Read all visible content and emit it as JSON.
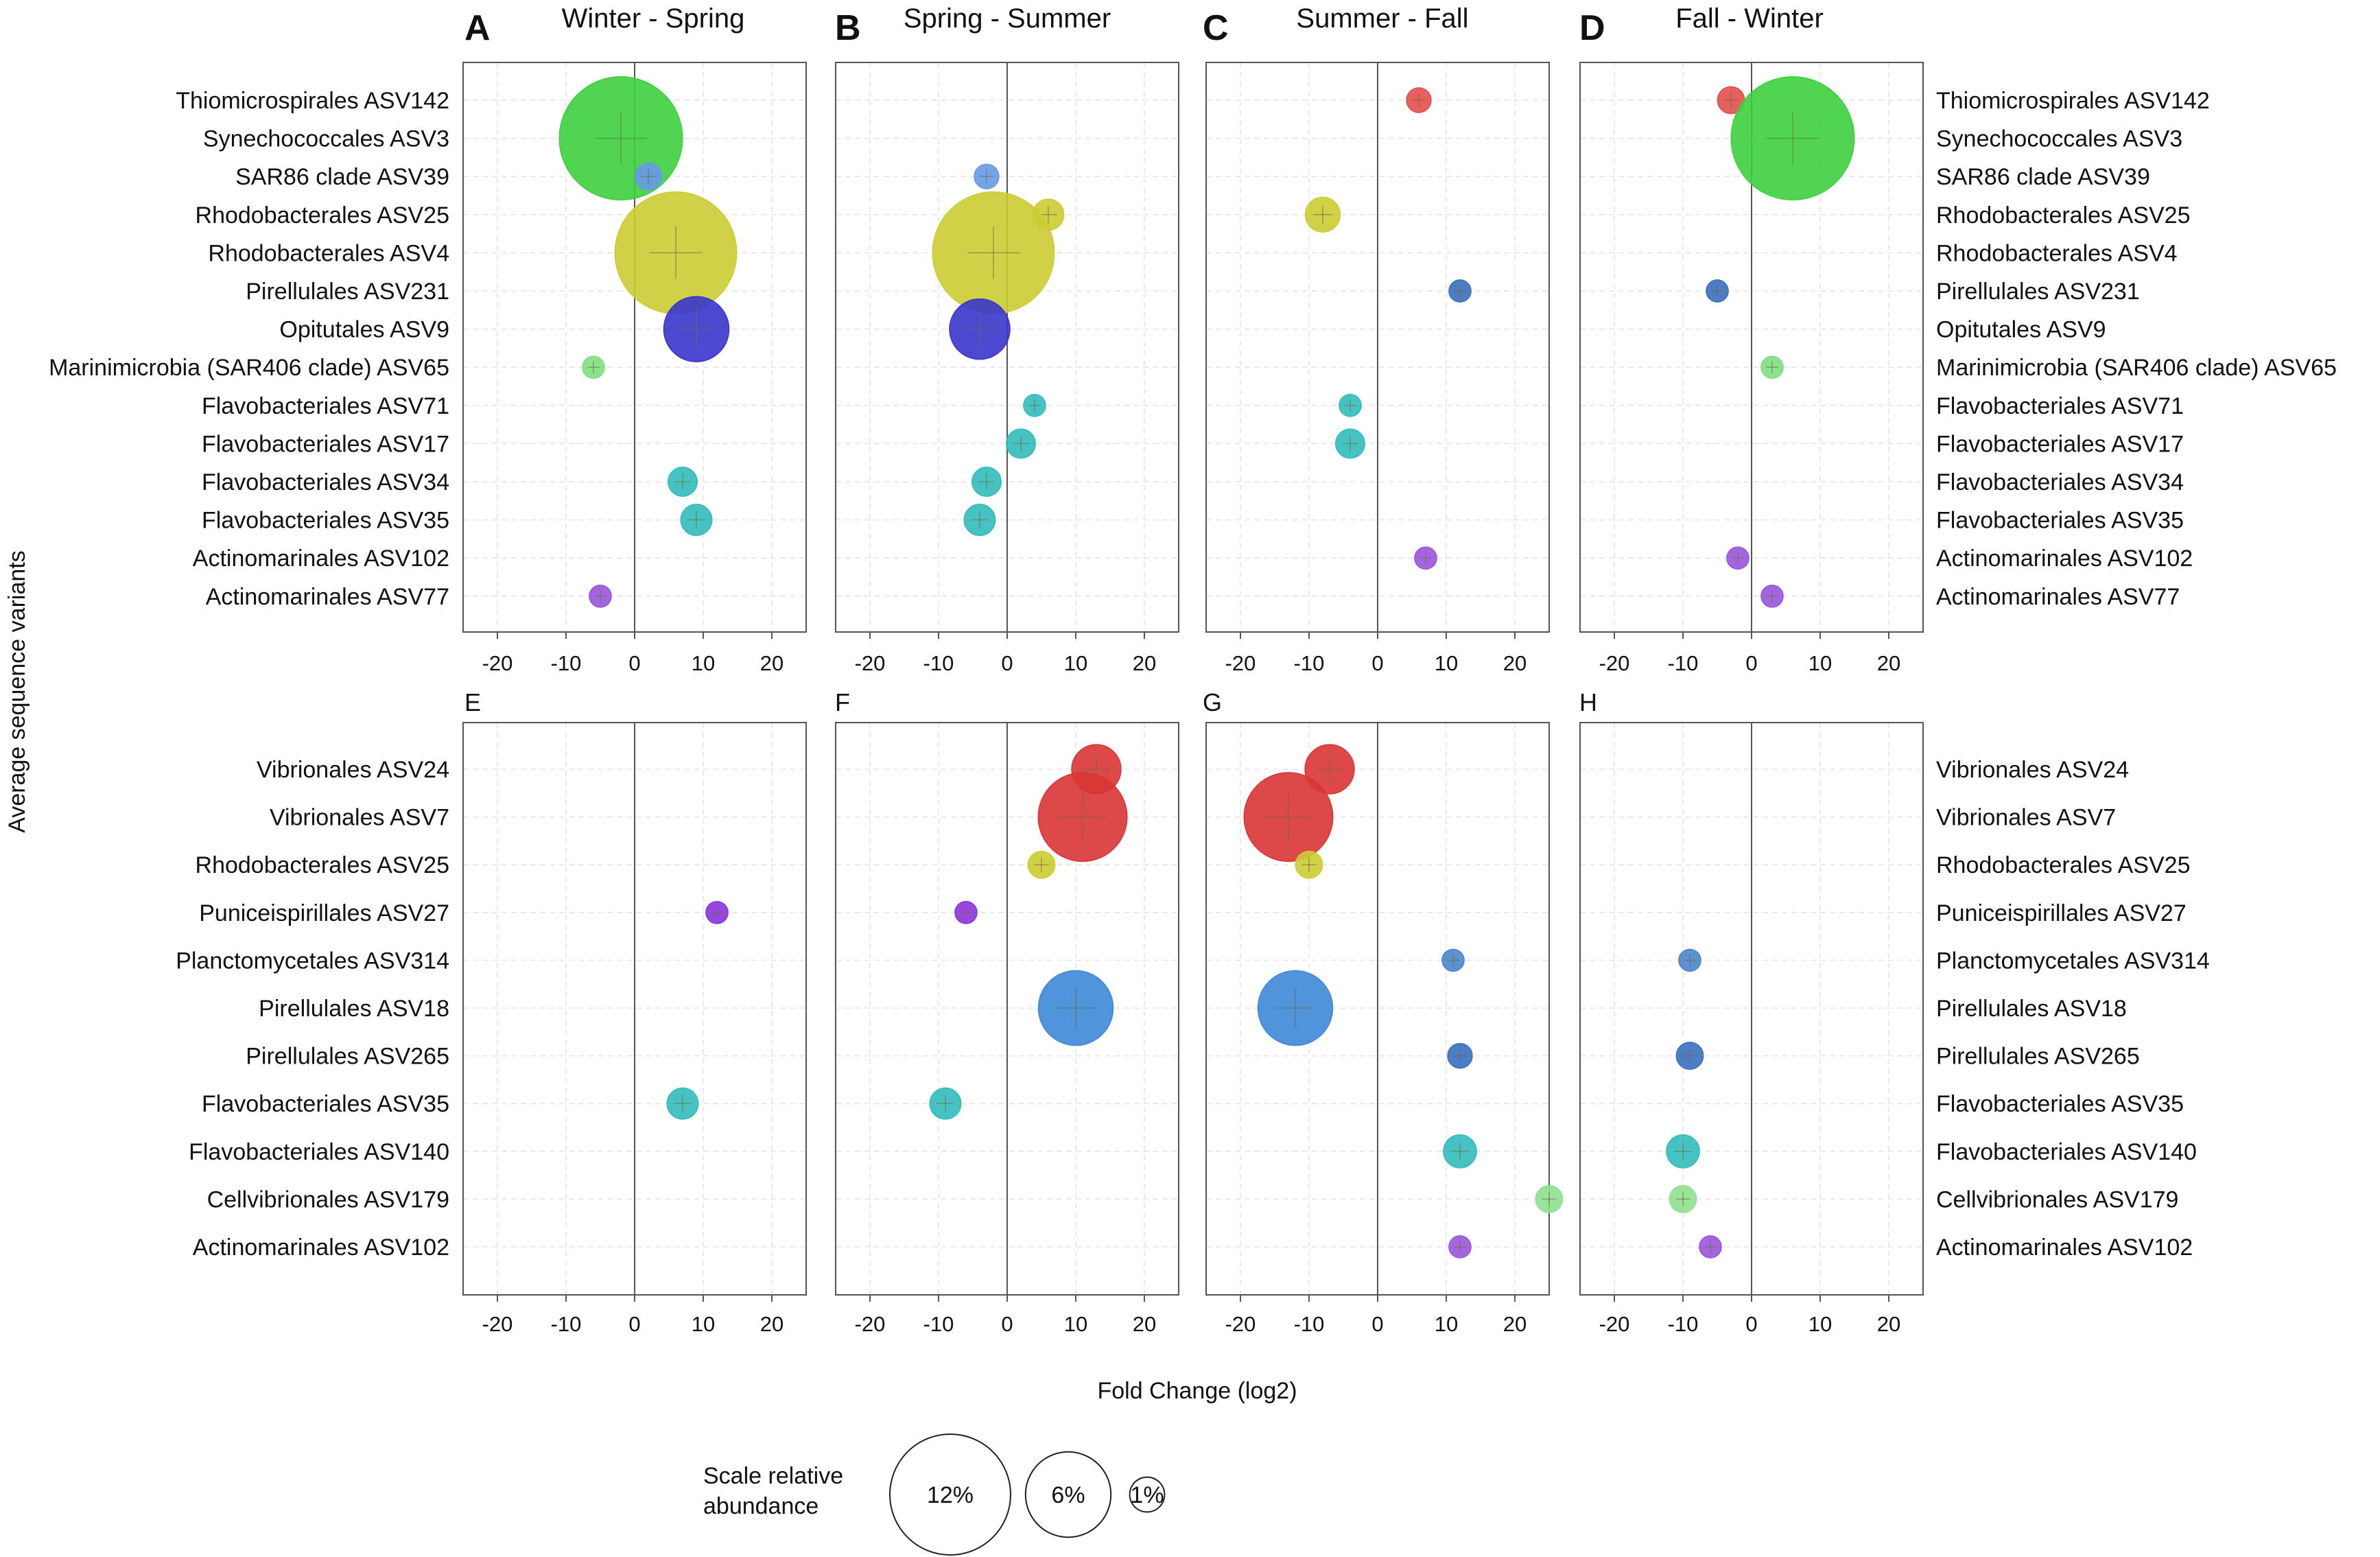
{
  "chart_data": {
    "type": "scatter",
    "subtype": "bubble",
    "y_axis_title": "Average sequence variants",
    "x_axis_title": "Fold Change (log2)",
    "xlim": [
      -25,
      25
    ],
    "x_ticks": [
      -20,
      -10,
      0,
      10,
      20
    ],
    "grid": true,
    "colors": {
      "Thiomicrospirales": "#e34f4f",
      "Synechococcales": "#3ecf3e",
      "SAR86 clade": "#6699e6",
      "Rhodobacterales": "#cccc33",
      "Pirellulales": "#3a6fbf",
      "Opitutales": "#3a35cc",
      "Marinimicrobia (SAR406 clade)": "#7fdf7f",
      "Flavobacteriales": "#33bbbb",
      "Actinomarinales": "#9955dd",
      "Vibrionales": "#d93535",
      "Puniceispirillales": "#8a33dd",
      "Planctomycetales": "#4a86cc",
      "Cellvibrionales": "#8fe08f",
      "Pirellulales ASV18": "#3d88d8"
    },
    "rows": [
      {
        "categories": [
          "Thiomicrospirales ASV142",
          "Synechococcales ASV3",
          "SAR86 clade ASV39",
          "Rhodobacterales ASV25",
          "Rhodobacterales ASV4",
          "Pirellulales ASV231",
          "Opitutales ASV9",
          "Marinimicrobia (SAR406 clade) ASV65",
          "Flavobacteriales ASV71",
          "Flavobacteriales ASV17",
          "Flavobacteriales ASV34",
          "Flavobacteriales ASV35",
          "Actinomarinales ASV102",
          "Actinomarinales ASV77"
        ],
        "panels": [
          {
            "letter": "A",
            "title": "Winter - Spring",
            "points": [
              {
                "category": "Synechococcales ASV3",
                "x": -2,
                "abundance": 12.5,
                "color": "#3ecf3e"
              },
              {
                "category": "SAR86 clade ASV39",
                "x": 2,
                "abundance": 0.6,
                "color": "#6699e6"
              },
              {
                "category": "Rhodobacterales ASV4",
                "x": 6,
                "abundance": 12.2,
                "color": "#cccc33"
              },
              {
                "category": "Opitutales ASV9",
                "x": 9,
                "abundance": 3.5,
                "color": "#3a35cc"
              },
              {
                "category": "Marinimicrobia (SAR406 clade) ASV65",
                "x": -6,
                "abundance": 0.4,
                "color": "#7fdf7f"
              },
              {
                "category": "Flavobacteriales ASV34",
                "x": 7,
                "abundance": 0.7,
                "color": "#33bbbb"
              },
              {
                "category": "Flavobacteriales ASV35",
                "x": 9,
                "abundance": 0.8,
                "color": "#33bbbb"
              },
              {
                "category": "Actinomarinales ASV77",
                "x": -5,
                "abundance": 0.4,
                "color": "#9955dd"
              }
            ]
          },
          {
            "letter": "B",
            "title": "Spring - Summer",
            "points": [
              {
                "category": "SAR86 clade ASV39",
                "x": -3,
                "abundance": 0.5,
                "color": "#6699e6"
              },
              {
                "category": "Rhodobacterales ASV25",
                "x": 6,
                "abundance": 0.8,
                "color": "#cccc33"
              },
              {
                "category": "Rhodobacterales ASV4",
                "x": -2,
                "abundance": 12.2,
                "color": "#cccc33"
              },
              {
                "category": "Opitutales ASV9",
                "x": -4,
                "abundance": 3.0,
                "color": "#3a35cc"
              },
              {
                "category": "Flavobacteriales ASV71",
                "x": 4,
                "abundance": 0.4,
                "color": "#33bbbb"
              },
              {
                "category": "Flavobacteriales ASV17",
                "x": 2,
                "abundance": 0.7,
                "color": "#33bbbb"
              },
              {
                "category": "Flavobacteriales ASV34",
                "x": -3,
                "abundance": 0.7,
                "color": "#33bbbb"
              },
              {
                "category": "Flavobacteriales ASV35",
                "x": -4,
                "abundance": 0.8,
                "color": "#33bbbb"
              }
            ]
          },
          {
            "letter": "C",
            "title": "Summer - Fall",
            "points": [
              {
                "category": "Thiomicrospirales ASV142",
                "x": 6,
                "abundance": 0.5,
                "color": "#e34f4f"
              },
              {
                "category": "Rhodobacterales ASV25",
                "x": -8,
                "abundance": 1.0,
                "color": "#cccc33"
              },
              {
                "category": "Pirellulales ASV231",
                "x": 12,
                "abundance": 0.4,
                "color": "#3a6fbf"
              },
              {
                "category": "Flavobacteriales ASV71",
                "x": -4,
                "abundance": 0.4,
                "color": "#33bbbb"
              },
              {
                "category": "Flavobacteriales ASV17",
                "x": -4,
                "abundance": 0.7,
                "color": "#33bbbb"
              },
              {
                "category": "Actinomarinales ASV102",
                "x": 7,
                "abundance": 0.4,
                "color": "#9955dd"
              }
            ]
          },
          {
            "letter": "D",
            "title": "Fall - Winter",
            "points": [
              {
                "category": "Thiomicrospirales ASV142",
                "x": -3,
                "abundance": 0.6,
                "color": "#e34f4f"
              },
              {
                "category": "Synechococcales ASV3",
                "x": 6,
                "abundance": 12.5,
                "color": "#3ecf3e"
              },
              {
                "category": "Pirellulales ASV231",
                "x": -5,
                "abundance": 0.4,
                "color": "#3a6fbf"
              },
              {
                "category": "Marinimicrobia (SAR406 clade) ASV65",
                "x": 3,
                "abundance": 0.4,
                "color": "#7fdf7f"
              },
              {
                "category": "Actinomarinales ASV102",
                "x": -2,
                "abundance": 0.4,
                "color": "#9955dd"
              },
              {
                "category": "Actinomarinales ASV77",
                "x": 3,
                "abundance": 0.4,
                "color": "#9955dd"
              }
            ]
          }
        ]
      },
      {
        "categories": [
          "Vibrionales ASV24",
          "Vibrionales ASV7",
          "Rhodobacterales ASV25",
          "Puniceispirillales ASV27",
          "Planctomycetales ASV314",
          "Pirellulales ASV18",
          "Pirellulales ASV265",
          "Flavobacteriales ASV35",
          "Flavobacteriales ASV140",
          "Cellvibrionales ASV179",
          "Actinomarinales ASV102"
        ],
        "panels": [
          {
            "letter": "E",
            "title": "",
            "points": [
              {
                "category": "Puniceispirillales ASV27",
                "x": 12,
                "abundance": 0.4,
                "color": "#8a33dd"
              },
              {
                "category": "Flavobacteriales ASV35",
                "x": 7,
                "abundance": 0.8,
                "color": "#33bbbb"
              }
            ]
          },
          {
            "letter": "F",
            "title": "",
            "points": [
              {
                "category": "Vibrionales ASV24",
                "x": 13,
                "abundance": 2.0,
                "color": "#d93535"
              },
              {
                "category": "Vibrionales ASV7",
                "x": 11,
                "abundance": 6.5,
                "color": "#d93535"
              },
              {
                "category": "Rhodobacterales ASV25",
                "x": 5,
                "abundance": 0.6,
                "color": "#cccc33"
              },
              {
                "category": "Puniceispirillales ASV27",
                "x": -6,
                "abundance": 0.4,
                "color": "#8a33dd"
              },
              {
                "category": "Pirellulales ASV18",
                "x": 10,
                "abundance": 4.6,
                "color": "#3d88d8"
              },
              {
                "category": "Flavobacteriales ASV35",
                "x": -9,
                "abundance": 0.8,
                "color": "#33bbbb"
              }
            ]
          },
          {
            "letter": "G",
            "title": "",
            "points": [
              {
                "category": "Vibrionales ASV24",
                "x": -7,
                "abundance": 2.0,
                "color": "#d93535"
              },
              {
                "category": "Vibrionales ASV7",
                "x": -13,
                "abundance": 6.5,
                "color": "#d93535"
              },
              {
                "category": "Rhodobacterales ASV25",
                "x": -10,
                "abundance": 0.6,
                "color": "#cccc33"
              },
              {
                "category": "Planctomycetales ASV314",
                "x": 11,
                "abundance": 0.4,
                "color": "#4a86cc"
              },
              {
                "category": "Pirellulales ASV18",
                "x": -12,
                "abundance": 4.6,
                "color": "#3d88d8"
              },
              {
                "category": "Pirellulales ASV265",
                "x": 12,
                "abundance": 0.5,
                "color": "#3a6fbf"
              },
              {
                "category": "Flavobacteriales ASV140",
                "x": 12,
                "abundance": 0.9,
                "color": "#33bbbb"
              },
              {
                "category": "Cellvibrionales ASV179",
                "x": 25,
                "abundance": 0.6,
                "color": "#8fe08f"
              },
              {
                "category": "Actinomarinales ASV102",
                "x": 12,
                "abundance": 0.4,
                "color": "#9955dd"
              }
            ]
          },
          {
            "letter": "H",
            "title": "",
            "points": [
              {
                "category": "Planctomycetales ASV314",
                "x": -9,
                "abundance": 0.4,
                "color": "#4a86cc"
              },
              {
                "category": "Pirellulales ASV265",
                "x": -9,
                "abundance": 0.6,
                "color": "#3a6fbf"
              },
              {
                "category": "Flavobacteriales ASV140",
                "x": -10,
                "abundance": 0.9,
                "color": "#33bbbb"
              },
              {
                "category": "Cellvibrionales ASV179",
                "x": -10,
                "abundance": 0.6,
                "color": "#8fe08f"
              },
              {
                "category": "Actinomarinales ASV102",
                "x": -6,
                "abundance": 0.4,
                "color": "#9955dd"
              }
            ]
          }
        ]
      }
    ],
    "legend": {
      "title_line1": "Scale relative",
      "title_line2": "abundance",
      "entries": [
        {
          "label": "12%",
          "abundance": 12
        },
        {
          "label": "6%",
          "abundance": 6
        },
        {
          "label": "1%",
          "abundance": 1
        }
      ]
    }
  }
}
